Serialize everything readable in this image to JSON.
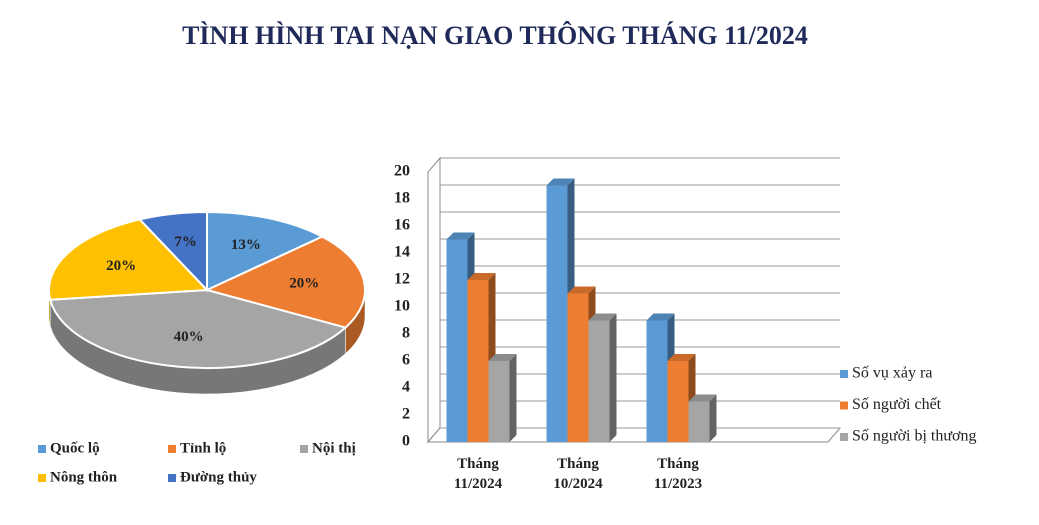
{
  "title": "TÌNH HÌNH TAI NẠN GIAO THÔNG THÁNG 11/2024",
  "chart_data": [
    {
      "type": "pie",
      "categories": [
        "Quốc lộ",
        "Tỉnh lộ",
        "Nội thị",
        "Nông thôn",
        "Đường thủy"
      ],
      "values": [
        13,
        20,
        40,
        20,
        7
      ],
      "value_labels": [
        "13%",
        "20%",
        "40%",
        "20%",
        "7%"
      ],
      "colors": [
        "#5b9bd5",
        "#ed7d31",
        "#a5a5a5",
        "#ffc000",
        "#4472c4"
      ]
    },
    {
      "type": "bar",
      "categories": [
        "Tháng 11/2024",
        "Tháng 10/2024",
        "Tháng 11/2023"
      ],
      "series": [
        {
          "name": "Số vụ xảy ra",
          "color": "#5b9bd5",
          "values": [
            15,
            19,
            9
          ]
        },
        {
          "name": "Số người chết",
          "color": "#ed7d31",
          "values": [
            12,
            11,
            6
          ]
        },
        {
          "name": "Số người bị thương",
          "color": "#a5a5a5",
          "values": [
            6,
            9,
            3
          ]
        }
      ],
      "ylim": [
        0,
        20
      ],
      "yticks": [
        0,
        2,
        4,
        6,
        8,
        10,
        12,
        14,
        16,
        18,
        20
      ],
      "grid": true
    }
  ]
}
